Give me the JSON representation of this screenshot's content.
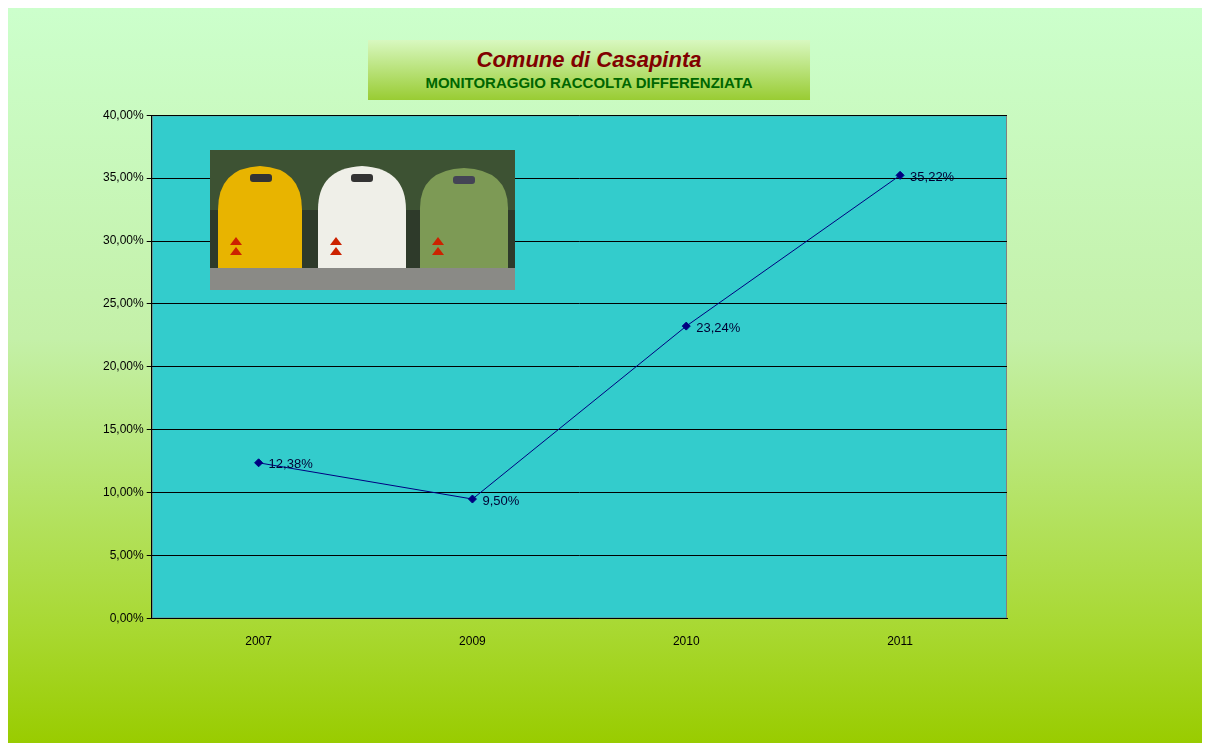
{
  "chart_data": {
    "type": "line",
    "title": "Comune di Casapinta",
    "subtitle": "MONITORAGGIO RACCOLTA DIFFERENZIATA",
    "categories": [
      "2007",
      "2009",
      "2010",
      "2011"
    ],
    "values": [
      12.38,
      9.5,
      23.24,
      35.22
    ],
    "value_labels": [
      "12,38%",
      "9,50%",
      "23,24%",
      "35,22%"
    ],
    "color": "#000080",
    "marker": "diamond",
    "ylim": [
      0,
      40
    ],
    "yticks": [
      {
        "value": 0,
        "label": "0,00%"
      },
      {
        "value": 5,
        "label": "5,00%"
      },
      {
        "value": 10,
        "label": "10,00%"
      },
      {
        "value": 15,
        "label": "15,00%"
      },
      {
        "value": 20,
        "label": "20,00%"
      },
      {
        "value": 25,
        "label": "25,00%"
      },
      {
        "value": 30,
        "label": "30,00%"
      },
      {
        "value": 35,
        "label": "35,00%"
      },
      {
        "value": 40,
        "label": "40,00%"
      }
    ],
    "grid": true,
    "data_labels": true
  }
}
